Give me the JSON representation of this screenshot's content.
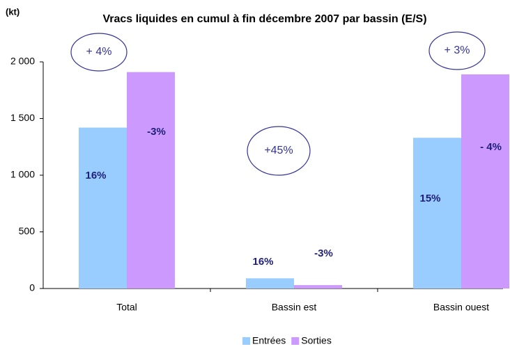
{
  "chart_data": {
    "type": "bar",
    "title": "Vracs liquides en cumul à fin décembre 2007 par bassin (E/S)",
    "y_unit_label": "(kt)",
    "categories": [
      "Total",
      "Bassin est",
      "Bassin ouest"
    ],
    "series": [
      {
        "name": "Entrées",
        "color": "#99ccff",
        "values": [
          1420,
          90,
          1330
        ],
        "labels": [
          "16%",
          "16%",
          "15%"
        ]
      },
      {
        "name": "Sorties",
        "color": "#cc99ff",
        "values": [
          1910,
          30,
          1890
        ],
        "labels": [
          "-3%",
          "-3%",
          "- 4%"
        ]
      }
    ],
    "total_labels": [
      "+ 4%",
      "+45%",
      "+ 3%"
    ],
    "ylim": [
      0,
      2000
    ],
    "yticks": [
      0,
      500,
      {
        "value": 1000,
        "label": "1 000"
      },
      {
        "value": 1500,
        "label": "1 500"
      },
      {
        "value": 2000,
        "label": "2 000"
      }
    ],
    "legend": "bottom"
  }
}
